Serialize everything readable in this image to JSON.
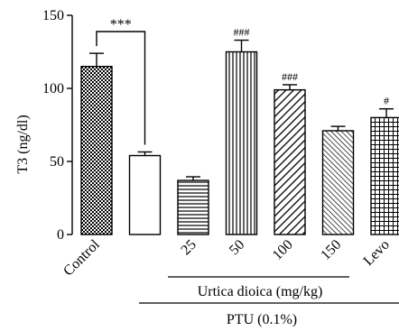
{
  "chart_data": {
    "type": "bar",
    "ylabel": "T3 (ng/dl)",
    "ylim": [
      0,
      150
    ],
    "yticks": [
      0,
      50,
      100,
      150
    ],
    "grid": false,
    "bars": [
      {
        "label": "Control",
        "value": 115,
        "error": 9,
        "pattern": "checker",
        "annotation": ""
      },
      {
        "label": "",
        "value": 54,
        "error": 2.5,
        "pattern": "none",
        "annotation": ""
      },
      {
        "label": "25",
        "value": 37,
        "error": 2.5,
        "pattern": "hlines",
        "annotation": ""
      },
      {
        "label": "50",
        "value": 125,
        "error": 8,
        "pattern": "vlines",
        "annotation": "###"
      },
      {
        "label": "100",
        "value": 99,
        "error": 3.5,
        "pattern": "diagwide",
        "annotation": "###"
      },
      {
        "label": "150",
        "value": 71,
        "error": 3,
        "pattern": "diagdense",
        "annotation": ""
      },
      {
        "label": "Levo",
        "value": 80,
        "error": 6,
        "pattern": "grid",
        "annotation": "#"
      }
    ],
    "significance": {
      "from_bar": 0,
      "to_bar": 1,
      "label": "***"
    },
    "group_labels": {
      "urtica": "Urtica dioica (mg/kg)",
      "ptu": "PTU (0.1%)"
    }
  }
}
